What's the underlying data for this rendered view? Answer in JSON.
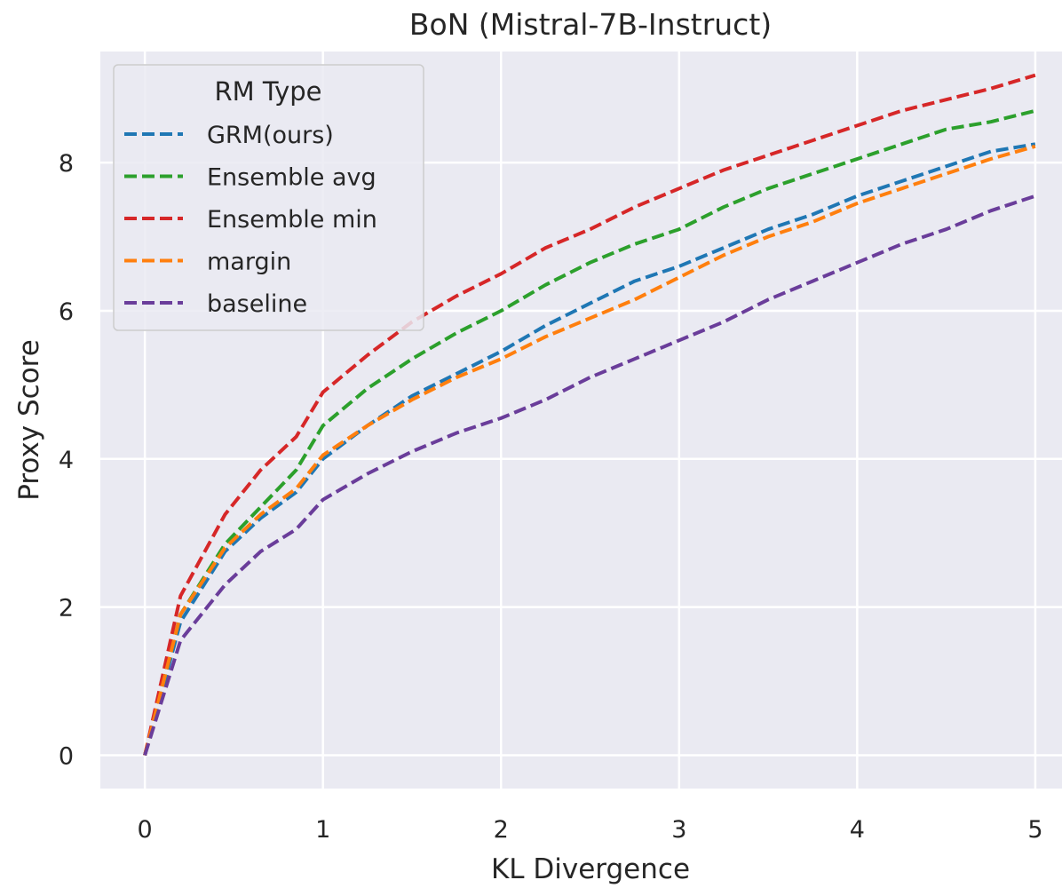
{
  "chart_data": {
    "type": "line",
    "title": "BoN (Mistral-7B-Instruct)",
    "xlabel": "KL Divergence",
    "ylabel": "Proxy Score",
    "xlim": [
      -0.25,
      5.15
    ],
    "ylim": [
      -0.45,
      9.5
    ],
    "xticks": [
      0,
      1,
      2,
      3,
      4,
      5
    ],
    "yticks": [
      0,
      2,
      4,
      6,
      8
    ],
    "grid": true,
    "legend": {
      "title": "RM Type",
      "placement": "top-left"
    },
    "x": [
      0,
      0.2,
      0.45,
      0.65,
      0.85,
      1,
      1.25,
      1.5,
      1.75,
      2,
      2.25,
      2.5,
      2.75,
      3,
      3.25,
      3.5,
      3.75,
      4,
      4.25,
      4.5,
      4.75,
      5
    ],
    "series": [
      {
        "name": "GRM(ours)",
        "color": "#1f77b4",
        "values": [
          0,
          1.8,
          2.75,
          3.2,
          3.55,
          4.0,
          4.45,
          4.85,
          5.15,
          5.45,
          5.8,
          6.1,
          6.4,
          6.6,
          6.85,
          7.1,
          7.3,
          7.55,
          7.75,
          7.95,
          8.15,
          8.25
        ]
      },
      {
        "name": "Ensemble avg",
        "color": "#2ca02c",
        "values": [
          0,
          1.9,
          2.85,
          3.35,
          3.85,
          4.45,
          4.95,
          5.35,
          5.7,
          6.0,
          6.35,
          6.65,
          6.9,
          7.1,
          7.4,
          7.65,
          7.85,
          8.05,
          8.25,
          8.45,
          8.55,
          8.7
        ]
      },
      {
        "name": "Ensemble min",
        "color": "#d62728",
        "values": [
          0,
          2.15,
          3.25,
          3.85,
          4.3,
          4.9,
          5.4,
          5.85,
          6.2,
          6.5,
          6.85,
          7.1,
          7.4,
          7.65,
          7.9,
          8.1,
          8.3,
          8.5,
          8.7,
          8.85,
          9.0,
          9.18
        ]
      },
      {
        "name": "margin",
        "color": "#ff7f0e",
        "values": [
          0,
          1.9,
          2.8,
          3.25,
          3.6,
          4.05,
          4.45,
          4.8,
          5.1,
          5.35,
          5.65,
          5.9,
          6.15,
          6.45,
          6.75,
          7.0,
          7.2,
          7.45,
          7.65,
          7.85,
          8.05,
          8.22
        ]
      },
      {
        "name": "baseline",
        "color": "#6a3d9a",
        "values": [
          0,
          1.55,
          2.3,
          2.75,
          3.05,
          3.45,
          3.8,
          4.1,
          4.35,
          4.55,
          4.8,
          5.1,
          5.35,
          5.6,
          5.85,
          6.15,
          6.4,
          6.65,
          6.9,
          7.1,
          7.35,
          7.55
        ]
      }
    ]
  }
}
